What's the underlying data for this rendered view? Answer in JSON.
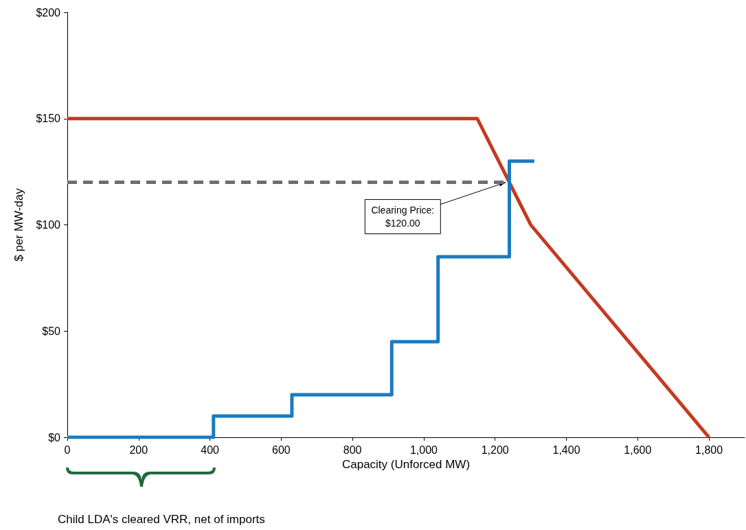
{
  "chart_data": {
    "type": "line",
    "xlabel": "Capacity (Unforced MW)",
    "ylabel": "$ per MW-day",
    "xlim": [
      0,
      1900
    ],
    "ylim": [
      0,
      200
    ],
    "xticks": [
      0,
      200,
      400,
      600,
      800,
      {
        "value": 1000,
        "label": "1,000"
      },
      {
        "value": 1200,
        "label": "1,200"
      },
      {
        "value": 1400,
        "label": "1,400"
      },
      {
        "value": 1600,
        "label": "1,600"
      },
      {
        "value": 1800,
        "label": "1,800"
      }
    ],
    "yticks": [
      {
        "value": 0,
        "label": "$0"
      },
      {
        "value": 50,
        "label": "$50"
      },
      {
        "value": 100,
        "label": "$100"
      },
      {
        "value": 150,
        "label": "$150"
      },
      {
        "value": 200,
        "label": "$200"
      }
    ],
    "grid": false,
    "marker": "none",
    "series": [
      {
        "color": "#6d6e71",
        "line_style": "dashed",
        "x": [
          0,
          1230
        ],
        "values": [
          120,
          120
        ]
      },
      {
        "color": "#c23b22",
        "x": [
          0,
          1150,
          1300,
          1800
        ],
        "values": [
          150,
          150,
          100,
          0
        ]
      },
      {
        "type": "step",
        "color": "#1b7bc0",
        "x": [
          0,
          410,
          630,
          910,
          1040,
          1240,
          1310
        ],
        "values": [
          0,
          10,
          20,
          45,
          85,
          130,
          130
        ]
      }
    ],
    "annotations": [
      {
        "text": "Clearing Price:\n$120.00",
        "x": 1230,
        "y": 120
      },
      "Child LDA's cleared VRR, net of imports"
    ]
  }
}
